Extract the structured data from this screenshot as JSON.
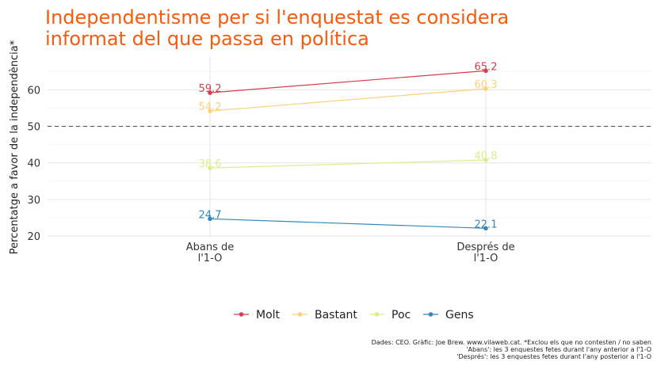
{
  "chart_data": {
    "type": "line",
    "title_lines": [
      "Independentisme per si l'enquestat es considera",
      "informat del que passa en política"
    ],
    "title_color": "#f55b0f",
    "ylabel": "Percentatge a favor de la independència*",
    "xlabel": "",
    "categories": [
      [
        "Abans de",
        "l'1-O"
      ],
      [
        "Després de",
        "l'1-O"
      ]
    ],
    "y_ticks": [
      20,
      30,
      40,
      50,
      60
    ],
    "ylim": [
      18,
      70
    ],
    "reference_line": 50,
    "grid": true,
    "legend_position": "bottom",
    "series": [
      {
        "name": "Molt",
        "values": [
          59.2,
          65.2
        ],
        "labels": [
          "59.2",
          "65.2"
        ],
        "color": "#d53e4f"
      },
      {
        "name": "Bastant",
        "values": [
          54.2,
          60.3
        ],
        "labels": [
          "54.2",
          "60.3"
        ],
        "color": "#fdd07a"
      },
      {
        "name": "Poc",
        "values": [
          38.6,
          40.8
        ],
        "labels": [
          "38.6",
          "40.8"
        ],
        "color": "#d9ef8b"
      },
      {
        "name": "Gens",
        "values": [
          24.7,
          22.1
        ],
        "labels": [
          "24.7",
          "22.1"
        ],
        "color": "#3288bd"
      }
    ],
    "caption_lines": [
      "Dades: CEO. Gràfic: Joe Brew. www.vilaweb.cat. *Exclou els que no contesten / no saben",
      "'Abans': les 3 enquestes fetes durant l'any anterior a l'1-O",
      "'Després': les 3 enquestes fetes durant l'any posterior a l'1-O"
    ]
  }
}
